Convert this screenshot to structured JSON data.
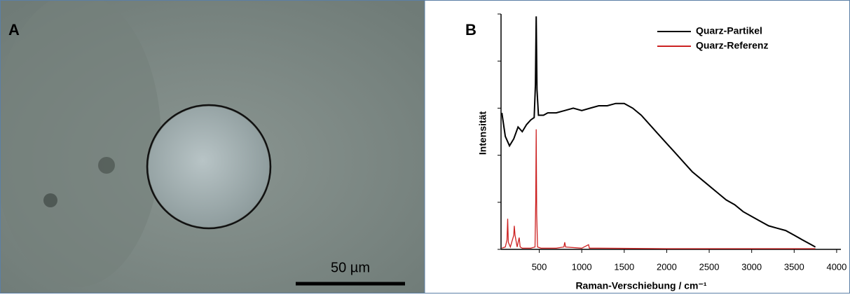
{
  "panel_a": {
    "label": "A",
    "scale_bar": "50 µm"
  },
  "chart_data": {
    "type": "line",
    "panel_label": "B",
    "xlabel": "Raman-Verschiebung / cm⁻¹",
    "ylabel": "Intensität",
    "xlim": [
      50,
      4050
    ],
    "xticks": [
      500,
      1000,
      1500,
      2000,
      2500,
      3000,
      3500,
      4000
    ],
    "ylim": [
      0,
      100
    ],
    "yticks": [
      0,
      20,
      40,
      60,
      80,
      100
    ],
    "legend": "upper right",
    "series": [
      {
        "name": "Quarz-Partikel",
        "color": "#000000",
        "x": [
          60,
          100,
          150,
          200,
          250,
          300,
          350,
          400,
          440,
          455,
          464,
          473,
          490,
          550,
          600,
          700,
          800,
          900,
          1000,
          1100,
          1200,
          1300,
          1400,
          1450,
          1500,
          1600,
          1700,
          1800,
          1900,
          2000,
          2100,
          2200,
          2300,
          2400,
          2500,
          2600,
          2700,
          2800,
          2900,
          3000,
          3100,
          3200,
          3300,
          3400,
          3500,
          3600,
          3700,
          3750
        ],
        "values": [
          58,
          48,
          44,
          47,
          52,
          50,
          53,
          55,
          56,
          70,
          99,
          68,
          57,
          57,
          58,
          58,
          59,
          60,
          59,
          60,
          61,
          61,
          62,
          62,
          62,
          60,
          57,
          53,
          49,
          45,
          41,
          37,
          33,
          30,
          27,
          24,
          21,
          19,
          16,
          14,
          12,
          10,
          9,
          8,
          6,
          4,
          2,
          1
        ]
      },
      {
        "name": "Quarz-Referenz",
        "color": "#cc2222",
        "x": [
          60,
          100,
          120,
          128,
          136,
          160,
          200,
          206,
          215,
          240,
          264,
          275,
          300,
          400,
          450,
          458,
          464,
          470,
          480,
          520,
          700,
          790,
          800,
          810,
          1000,
          1080,
          1090,
          1200,
          2000,
          3000,
          3750
        ],
        "values": [
          0.5,
          1,
          4,
          13,
          3,
          1,
          6,
          10,
          6,
          1,
          5,
          1,
          0.5,
          0.5,
          1,
          20,
          51,
          15,
          1,
          0.5,
          0.5,
          1,
          3,
          1,
          0.5,
          2,
          0.5,
          0.5,
          0.3,
          0.3,
          0.3
        ]
      }
    ]
  }
}
